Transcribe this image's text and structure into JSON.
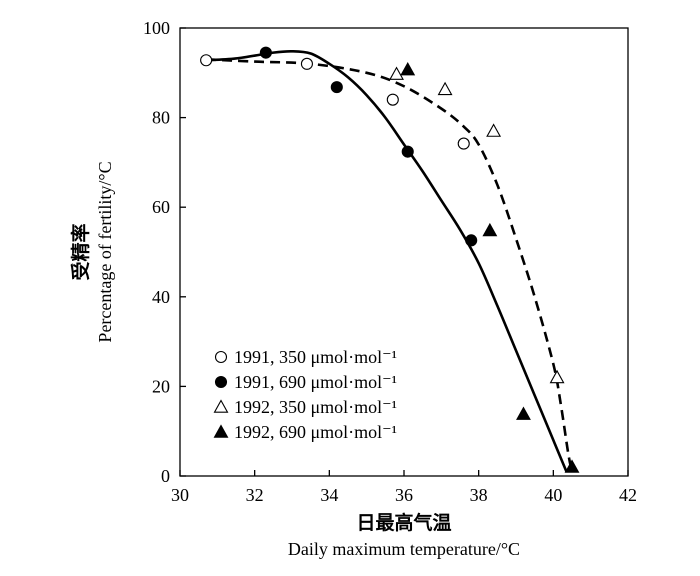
{
  "chart_data": {
    "type": "scatter",
    "xlabel_cn": "日最高气温",
    "xlabel_en": "Daily maximum temperature/°C",
    "ylabel_cn": "受精率",
    "ylabel_en": "Percentage of fertility/°C",
    "xlim": [
      30,
      42
    ],
    "ylim": [
      0,
      100
    ],
    "x_ticks": [
      "30",
      "32",
      "34",
      "36",
      "38",
      "40",
      "42"
    ],
    "y_ticks": [
      "0",
      "20",
      "40",
      "60",
      "80",
      "100"
    ],
    "legend_position": "bottom-left",
    "series": [
      {
        "name": "1991, 350 μmol·mol⁻¹",
        "marker": "open-circle",
        "points": [
          [
            30.7,
            92.8
          ],
          [
            33.4,
            92.0
          ],
          [
            35.7,
            84.0
          ],
          [
            37.6,
            74.2
          ]
        ]
      },
      {
        "name": "1991, 690 μmol·mol⁻¹",
        "marker": "filled-circle",
        "points": [
          [
            32.3,
            94.5
          ],
          [
            34.2,
            86.8
          ],
          [
            36.1,
            72.4
          ],
          [
            37.8,
            52.6
          ]
        ]
      },
      {
        "name": "1992, 350 μmol·mol⁻¹",
        "marker": "open-triangle",
        "points": [
          [
            35.8,
            89.7
          ],
          [
            37.1,
            86.3
          ],
          [
            38.4,
            77.0
          ],
          [
            40.1,
            22.0
          ]
        ]
      },
      {
        "name": "1992, 690 μmol·mol⁻¹",
        "marker": "filled-triangle",
        "points": [
          [
            36.1,
            90.7
          ],
          [
            38.3,
            54.8
          ],
          [
            39.2,
            13.8
          ],
          [
            40.5,
            2.0
          ]
        ]
      }
    ],
    "fit_curves": [
      {
        "style": "solid",
        "points": [
          [
            30.7,
            92.8
          ],
          [
            31.5,
            93.2
          ],
          [
            32.5,
            94.5
          ],
          [
            33.0,
            94.8
          ],
          [
            33.5,
            94.3
          ],
          [
            34.0,
            92.0
          ],
          [
            34.5,
            89.0
          ],
          [
            35.0,
            85.0
          ],
          [
            35.5,
            80.0
          ],
          [
            36.0,
            74.0
          ],
          [
            36.5,
            68.0
          ],
          [
            37.0,
            61.5
          ],
          [
            37.5,
            55.0
          ],
          [
            38.0,
            47.5
          ],
          [
            38.5,
            38.0
          ],
          [
            39.0,
            28.0
          ],
          [
            39.5,
            18.0
          ],
          [
            40.0,
            8.0
          ],
          [
            40.35,
            1.0
          ]
        ]
      },
      {
        "style": "dashed",
        "points": [
          [
            30.7,
            93.0
          ],
          [
            32.0,
            92.5
          ],
          [
            33.5,
            92.0
          ],
          [
            35.0,
            90.0
          ],
          [
            36.0,
            87.0
          ],
          [
            37.0,
            82.0
          ],
          [
            37.6,
            78.0
          ],
          [
            38.0,
            74.0
          ],
          [
            38.5,
            65.0
          ],
          [
            39.0,
            53.0
          ],
          [
            39.5,
            40.0
          ],
          [
            40.0,
            25.0
          ],
          [
            40.2,
            16.0
          ],
          [
            40.4,
            5.0
          ],
          [
            40.5,
            1.0
          ]
        ]
      }
    ]
  }
}
